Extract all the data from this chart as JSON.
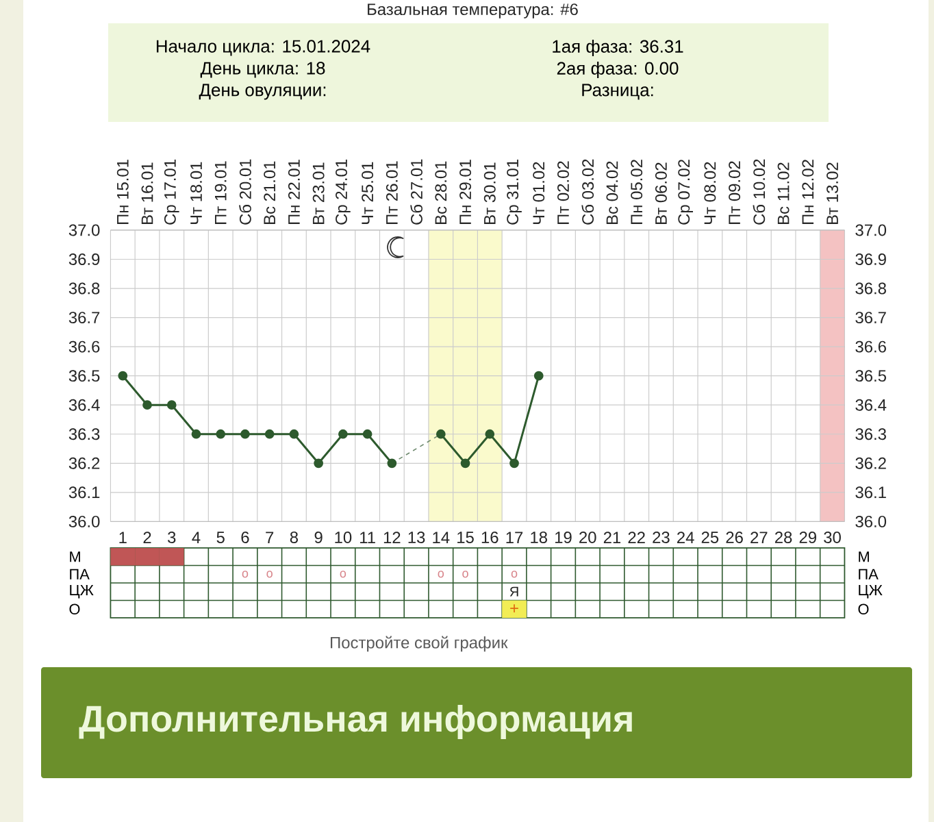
{
  "chart_data": [
    {
      "type": "line",
      "title": "Базальная температура: #6",
      "annotations": [
        "Начало цикла: 15.01.2024",
        "День цикла: 18",
        "День овуляции:",
        "1ая фаза: 36.31",
        "2ая фаза: 0.00",
        "Разница:"
      ],
      "categories": [
        "Пн 15.01",
        "Вт 16.01",
        "Ср 17.01",
        "Чт 18.01",
        "Пт 19.01",
        "Сб 20.01",
        "Вс 21.01",
        "Пн 22.01",
        "Вт 23.01",
        "Ср 24.01",
        "Чт 25.01",
        "Пт 26.01",
        "Сб 27.01",
        "Вс 28.01",
        "Пн 29.01",
        "Вт 30.01",
        "Ср 31.01",
        "Чт 01.02",
        "Пт 02.02",
        "Сб 03.02",
        "Вс 04.02",
        "Пн 05.02",
        "Вт 06.02",
        "Ср 07.02",
        "Чт 08.02",
        "Пт 09.02",
        "Сб 10.02",
        "Вс 11.02",
        "Пн 12.02",
        "Вт 13.02"
      ],
      "ylim": [
        36.0,
        37.0
      ],
      "yticks": [
        {
          "value": 36.0,
          "label": "36.0"
        },
        36.1,
        36.2,
        36.3,
        36.4,
        36.5,
        36.6,
        36.7,
        36.8,
        36.9,
        {
          "value": 37.0,
          "label": "37.0"
        }
      ],
      "y2lim": [
        36.0,
        37.0
      ],
      "y2ticks": [
        {
          "value": 36.0,
          "label": "36.0"
        },
        36.1,
        36.2,
        36.3,
        36.4,
        36.5,
        36.6,
        36.7,
        36.8,
        36.9,
        {
          "value": 37.0,
          "label": "37.0"
        }
      ],
      "grid": true,
      "marker": "circle",
      "line_style": "solid",
      "series": [
        {
          "color": "#2d5a2d",
          "values": [
            36.5,
            36.4,
            36.4,
            36.3,
            36.3,
            36.3,
            36.3,
            36.3,
            36.2,
            36.3,
            36.3,
            36.2,
            null,
            36.3,
            36.2,
            36.3,
            36.2,
            36.5,
            null,
            null,
            null,
            null,
            null,
            null,
            null,
            null,
            null,
            null,
            null,
            null
          ]
        },
        {
          "x": [
            "Пт 26.01",
            "Вс 28.01"
          ],
          "values": [
            36.2,
            36.3
          ],
          "color": "#6f8a6f",
          "marker": "none",
          "line_style": "dashed"
        }
      ],
      "bands": [
        {
          "axis": "x",
          "from": "Вс 28.01",
          "to": "Вт 30.01",
          "color": "#fafacc"
        },
        {
          "axis": "x",
          "from": "Вт 13.02",
          "to": "Вт 13.02",
          "color": "#f4c2c2"
        }
      ]
    },
    {
      "type": "heatmap",
      "categories": [
        "1",
        "2",
        "3",
        "4",
        "5",
        "6",
        "7",
        "8",
        "9",
        "10",
        "11",
        "12",
        "13",
        "14",
        "15",
        "16",
        "17",
        "18",
        "19",
        "20",
        "21",
        "22",
        "23",
        "24",
        "25",
        "26",
        "27",
        "28",
        "29",
        "30"
      ],
      "y_categories": [
        "М",
        "ПА",
        "ЦЖ",
        "О"
      ],
      "y2_categories": [
        "М",
        "ПА",
        "ЦЖ",
        "О"
      ],
      "cells": [
        [
          null,
          null,
          null,
          null,
          null,
          null,
          null,
          null,
          null,
          null,
          null,
          null,
          null,
          null,
          null,
          null,
          null,
          null,
          null,
          null,
          null,
          null,
          null,
          null,
          null,
          null,
          null,
          null,
          null,
          null
        ],
        [
          null,
          null,
          null,
          null,
          null,
          null,
          null,
          null,
          null,
          null,
          null,
          null,
          null,
          null,
          null,
          null,
          null,
          null,
          null,
          null,
          null,
          null,
          null,
          null,
          null,
          null,
          null,
          null,
          null,
          null
        ],
        [
          null,
          null,
          null,
          null,
          null,
          null,
          null,
          null,
          null,
          null,
          null,
          null,
          null,
          null,
          null,
          null,
          null,
          null,
          null,
          null,
          null,
          null,
          null,
          null,
          null,
          null,
          null,
          null,
          null,
          null
        ],
        [
          null,
          null,
          null,
          null,
          null,
          null,
          null,
          null,
          null,
          null,
          null,
          null,
          null,
          null,
          null,
          null,
          null,
          null,
          null,
          null,
          null,
          null,
          null,
          null,
          null,
          null,
          null,
          null,
          null,
          null
        ]
      ],
      "cell_labels": [
        [
          null,
          null,
          null,
          null,
          null,
          null,
          null,
          null,
          null,
          null,
          null,
          null,
          null,
          null,
          null,
          null,
          null,
          null,
          null,
          null,
          null,
          null,
          null,
          null,
          null,
          null,
          null,
          null,
          null,
          null
        ],
        [
          null,
          null,
          null,
          null,
          null,
          "o",
          "o",
          null,
          null,
          "o",
          null,
          null,
          null,
          "o",
          "o",
          null,
          "o",
          null,
          null,
          null,
          null,
          null,
          null,
          null,
          null,
          null,
          null,
          null,
          null,
          null
        ],
        [
          null,
          null,
          null,
          null,
          null,
          null,
          null,
          null,
          null,
          null,
          null,
          null,
          null,
          null,
          null,
          null,
          "Я",
          null,
          null,
          null,
          null,
          null,
          null,
          null,
          null,
          null,
          null,
          null,
          null,
          null
        ],
        [
          null,
          null,
          null,
          null,
          null,
          null,
          null,
          null,
          null,
          null,
          null,
          null,
          null,
          null,
          null,
          null,
          "+",
          null,
          null,
          null,
          null,
          null,
          null,
          null,
          null,
          null,
          null,
          null,
          null,
          null
        ]
      ],
      "colors": [
        [
          "#c05656",
          "#c05656",
          "#c05656",
          null,
          null,
          null,
          null,
          null,
          null,
          null,
          null,
          null,
          null,
          null,
          null,
          null,
          null,
          null,
          null,
          null,
          null,
          null,
          null,
          null,
          null,
          null,
          null,
          null,
          null,
          null
        ],
        [
          null,
          null,
          null,
          null,
          null,
          null,
          null,
          null,
          null,
          null,
          null,
          null,
          null,
          null,
          null,
          null,
          null,
          null,
          null,
          null,
          null,
          null,
          null,
          null,
          null,
          null,
          null,
          null,
          null,
          null
        ],
        [
          null,
          null,
          null,
          null,
          null,
          null,
          null,
          null,
          null,
          null,
          null,
          null,
          null,
          null,
          null,
          null,
          null,
          null,
          null,
          null,
          null,
          null,
          null,
          null,
          null,
          null,
          null,
          null,
          null,
          null
        ],
        [
          null,
          null,
          null,
          null,
          null,
          null,
          null,
          null,
          null,
          null,
          null,
          null,
          null,
          null,
          null,
          null,
          "#f2ed55",
          null,
          null,
          null,
          null,
          null,
          null,
          null,
          null,
          null,
          null,
          null,
          null,
          null
        ]
      ],
      "grid": true,
      "annotations": [
        "Постройте свой график",
        "Дополнительная информация"
      ]
    }
  ]
}
